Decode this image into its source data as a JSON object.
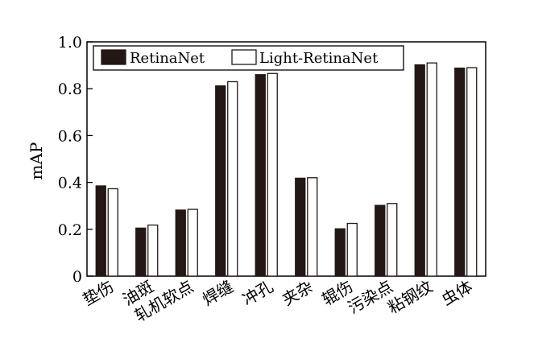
{
  "chart_data": {
    "type": "bar",
    "ylabel": "mAP",
    "ylim": [
      0,
      1.0
    ],
    "yticks": [
      "0",
      "0.2",
      "0.4",
      "0.6",
      "0.8",
      "1.0"
    ],
    "legend_position": "top-left",
    "categories": [
      "垫伤",
      "油斑",
      "轧机软点",
      "焊缝",
      "冲孔",
      "夹杂",
      "辊伤",
      "污染点",
      "粘钢纹",
      "虫体"
    ],
    "series": [
      {
        "name": "RetinaNet",
        "color": "#231815",
        "values": [
          0.385,
          0.205,
          0.282,
          0.812,
          0.86,
          0.418,
          0.202,
          0.302,
          0.902,
          0.888
        ]
      },
      {
        "name": "Light-RetinaNet",
        "color": "#ffffff",
        "values": [
          0.373,
          0.218,
          0.285,
          0.83,
          0.865,
          0.42,
          0.225,
          0.31,
          0.91,
          0.89
        ]
      }
    ]
  }
}
